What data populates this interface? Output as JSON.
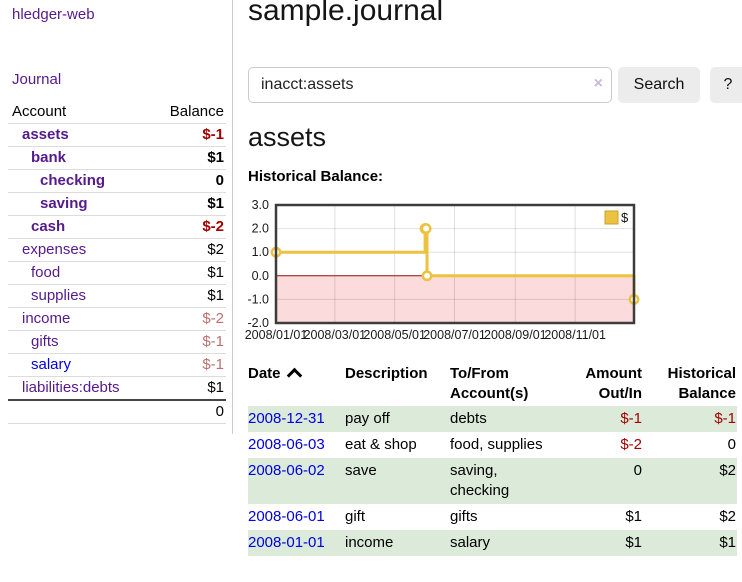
{
  "app": {
    "brand": "hledger-web"
  },
  "sidebar": {
    "journal_label": "Journal",
    "accounts_table": {
      "headers": {
        "account": "Account",
        "balance": "Balance"
      },
      "rows": [
        {
          "name": "assets",
          "depth": 1,
          "bold": true,
          "balance": "$-1",
          "negative": "strong"
        },
        {
          "name": "bank",
          "depth": 2,
          "bold": true,
          "balance": "$1"
        },
        {
          "name": "checking",
          "depth": 3,
          "bold": true,
          "balance": "0"
        },
        {
          "name": "saving",
          "depth": 3,
          "bold": true,
          "balance": "$1"
        },
        {
          "name": "cash",
          "depth": 2,
          "bold": true,
          "balance": "$-2",
          "negative": "strong"
        },
        {
          "name": "expenses",
          "depth": 1,
          "bold": false,
          "balance": "$2"
        },
        {
          "name": "food",
          "depth": 2,
          "bold": false,
          "balance": "$1"
        },
        {
          "name": "supplies",
          "depth": 2,
          "bold": false,
          "balance": "$1"
        },
        {
          "name": "income",
          "depth": 1,
          "bold": false,
          "balance": "$-2",
          "negative": "soft"
        },
        {
          "name": "gifts",
          "depth": 2,
          "bold": false,
          "balance": "$-1",
          "negative": "soft"
        },
        {
          "name": "salary",
          "depth": 2,
          "bold": false,
          "balance": "$-1",
          "negative": "soft",
          "link": "blue"
        },
        {
          "name": "liabilities:debts",
          "depth": 1,
          "bold": false,
          "balance": "$1"
        }
      ],
      "total": "0"
    }
  },
  "header": {
    "title": "sample.journal"
  },
  "search": {
    "value": "inacct:assets",
    "clear_icon": "×",
    "button_label": "Search",
    "help_label": "?"
  },
  "account_page": {
    "heading": "assets",
    "chart_label": "Historical Balance:"
  },
  "chart_data": {
    "type": "line",
    "step": true,
    "title": "Historical Balance",
    "series": [
      {
        "name": "$",
        "points": [
          [
            "2008-01-01",
            1
          ],
          [
            "2008-06-01",
            2
          ],
          [
            "2008-06-02",
            2
          ],
          [
            "2008-06-03",
            0
          ],
          [
            "2008-12-31",
            -1
          ]
        ]
      }
    ],
    "x_range": [
      "2008-01-01",
      "2008-12-31"
    ],
    "ylim": [
      -2,
      3
    ],
    "yticks": [
      3,
      2,
      1,
      0,
      -1,
      -2
    ],
    "xticks": [
      {
        "date": "2008-01-01",
        "label": "2008/01/01"
      },
      {
        "date": "2008-03-01",
        "label": "2008/03/01"
      },
      {
        "date": "2008-05-01",
        "label": "2008/05/01"
      },
      {
        "date": "2008-07-01",
        "label": "2008/07/01"
      },
      {
        "date": "2008-09-01",
        "label": "2008/09/01"
      },
      {
        "date": "2008-11-01",
        "label": "2008/11/01"
      }
    ],
    "grid": true,
    "legend_position": "top-right",
    "colors": {
      "series": "#edc240",
      "series_border": "#c9a32e",
      "negative_region": "#fbdbdb",
      "zero_line": "#8b1212",
      "plot_border": "#3c3c3c"
    }
  },
  "register_table": {
    "headers": {
      "date": "Date",
      "description": "Description",
      "accounts": "To/From Account(s)",
      "amount": "Amount Out/In",
      "balance": "Historical Balance"
    },
    "rows": [
      {
        "date": "2008-12-31",
        "description": "pay off",
        "accounts": "debts",
        "amount": "$-1",
        "amount_neg": true,
        "balance": "$-1",
        "balance_neg": true
      },
      {
        "date": "2008-06-03",
        "description": "eat & shop",
        "accounts": "food, supplies",
        "amount": "$-2",
        "amount_neg": true,
        "balance": "0",
        "balance_neg": false
      },
      {
        "date": "2008-06-02",
        "description": "save",
        "accounts": "saving, checking",
        "amount": "0",
        "amount_neg": false,
        "balance": "$2",
        "balance_neg": false
      },
      {
        "date": "2008-06-01",
        "description": "gift",
        "accounts": "gifts",
        "amount": "$1",
        "amount_neg": false,
        "balance": "$2",
        "balance_neg": false
      },
      {
        "date": "2008-01-01",
        "description": "income",
        "accounts": "salary",
        "amount": "$1",
        "amount_neg": false,
        "balance": "$1",
        "balance_neg": false
      }
    ]
  },
  "colors": {
    "link_purple": "#551a8b",
    "link_blue": "#0000e0",
    "negative_strong": "#a40000",
    "negative_soft": "#bc7070",
    "row_stripe_green": "#dbead9",
    "button_gray": "#ececec"
  }
}
